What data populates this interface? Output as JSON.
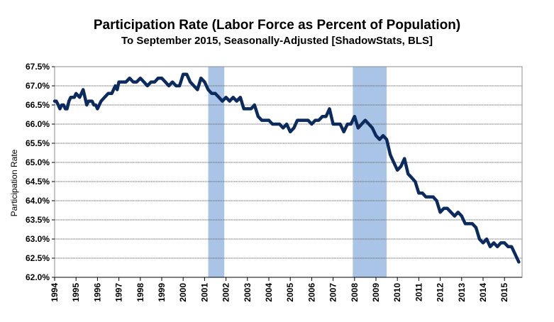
{
  "chart_data": {
    "type": "line",
    "title": "Participation Rate (Labor Force as Percent of Population)",
    "subtitle": "To September 2015, Seasonally-Adjusted [ShadowStats, BLS]",
    "xlabel": "",
    "ylabel": "Participation Rate",
    "ylim": [
      62.0,
      67.5
    ],
    "xlim": [
      1994,
      2015.9
    ],
    "y_ticks": [
      "62.0%",
      "62.5%",
      "63.0%",
      "63.5%",
      "64.0%",
      "64.5%",
      "65.0%",
      "65.5%",
      "66.0%",
      "66.5%",
      "67.0%",
      "67.5%"
    ],
    "x_ticks": [
      "1994",
      "1995",
      "1996",
      "1997",
      "1998",
      "1999",
      "2000",
      "2001",
      "2002",
      "2003",
      "2004",
      "2005",
      "2006",
      "2007",
      "2008",
      "2009",
      "2010",
      "2011",
      "2012",
      "2013",
      "2014",
      "2015"
    ],
    "grid": true,
    "line_color": "#0b2a5e",
    "shading_color": "#a9c4e6",
    "recessions": [
      {
        "start": 2001.17,
        "end": 2001.92
      },
      {
        "start": 2007.92,
        "end": 2009.5
      }
    ],
    "series": [
      {
        "name": "Participation Rate",
        "x": [
          1994.0,
          1994.08,
          1994.17,
          1994.25,
          1994.33,
          1994.42,
          1994.5,
          1994.58,
          1994.67,
          1994.75,
          1994.83,
          1994.92,
          1995.0,
          1995.17,
          1995.33,
          1995.5,
          1995.58,
          1995.67,
          1995.75,
          1995.83,
          1995.92,
          1996.0,
          1996.17,
          1996.33,
          1996.5,
          1996.67,
          1996.83,
          1996.92,
          1997.0,
          1997.17,
          1997.33,
          1997.5,
          1997.67,
          1997.83,
          1998.0,
          1998.17,
          1998.33,
          1998.5,
          1998.67,
          1998.83,
          1999.0,
          1999.17,
          1999.33,
          1999.5,
          1999.67,
          1999.83,
          2000.0,
          2000.17,
          2000.33,
          2000.5,
          2000.67,
          2000.83,
          2001.0,
          2001.17,
          2001.33,
          2001.5,
          2001.67,
          2001.83,
          2002.0,
          2002.17,
          2002.33,
          2002.5,
          2002.67,
          2002.83,
          2003.0,
          2003.17,
          2003.33,
          2003.5,
          2003.67,
          2003.83,
          2004.0,
          2004.17,
          2004.33,
          2004.5,
          2004.67,
          2004.83,
          2005.0,
          2005.17,
          2005.33,
          2005.5,
          2005.67,
          2005.83,
          2006.0,
          2006.17,
          2006.33,
          2006.5,
          2006.67,
          2006.83,
          2007.0,
          2007.17,
          2007.33,
          2007.5,
          2007.67,
          2007.83,
          2008.0,
          2008.17,
          2008.33,
          2008.5,
          2008.67,
          2008.83,
          2009.0,
          2009.17,
          2009.33,
          2009.5,
          2009.67,
          2009.83,
          2010.0,
          2010.17,
          2010.33,
          2010.5,
          2010.67,
          2010.83,
          2011.0,
          2011.17,
          2011.33,
          2011.5,
          2011.67,
          2011.83,
          2012.0,
          2012.17,
          2012.33,
          2012.5,
          2012.67,
          2012.83,
          2013.0,
          2013.17,
          2013.33,
          2013.5,
          2013.67,
          2013.83,
          2014.0,
          2014.17,
          2014.33,
          2014.5,
          2014.67,
          2014.83,
          2015.0,
          2015.17,
          2015.33,
          2015.5,
          2015.67
        ],
        "values": [
          66.6,
          66.6,
          66.5,
          66.4,
          66.5,
          66.5,
          66.4,
          66.4,
          66.6,
          66.7,
          66.7,
          66.7,
          66.8,
          66.7,
          66.9,
          66.5,
          66.6,
          66.6,
          66.6,
          66.5,
          66.5,
          66.4,
          66.6,
          66.7,
          66.8,
          66.8,
          67.0,
          66.9,
          67.1,
          67.1,
          67.1,
          67.2,
          67.1,
          67.1,
          67.2,
          67.1,
          67.0,
          67.1,
          67.1,
          67.2,
          67.2,
          67.1,
          67.0,
          67.1,
          67.0,
          67.0,
          67.3,
          67.3,
          67.1,
          67.0,
          66.9,
          67.2,
          67.1,
          66.9,
          66.8,
          66.8,
          66.7,
          66.6,
          66.7,
          66.6,
          66.7,
          66.6,
          66.7,
          66.4,
          66.4,
          66.4,
          66.5,
          66.2,
          66.1,
          66.1,
          66.1,
          66.0,
          66.0,
          66.0,
          65.9,
          66.0,
          65.8,
          65.9,
          66.1,
          66.1,
          66.1,
          66.1,
          66.0,
          66.1,
          66.1,
          66.2,
          66.2,
          66.4,
          66.0,
          66.0,
          66.0,
          65.8,
          66.0,
          66.0,
          66.2,
          65.9,
          66.0,
          66.1,
          66.0,
          65.9,
          65.7,
          65.6,
          65.7,
          65.6,
          65.2,
          65.0,
          64.8,
          64.9,
          65.1,
          64.7,
          64.6,
          64.5,
          64.2,
          64.2,
          64.1,
          64.1,
          64.1,
          64.0,
          63.7,
          63.8,
          63.8,
          63.7,
          63.6,
          63.7,
          63.6,
          63.4,
          63.4,
          63.4,
          63.3,
          63.0,
          62.9,
          63.0,
          62.8,
          62.9,
          62.8,
          62.9,
          62.9,
          62.8,
          62.8,
          62.6,
          62.4
        ]
      }
    ]
  }
}
